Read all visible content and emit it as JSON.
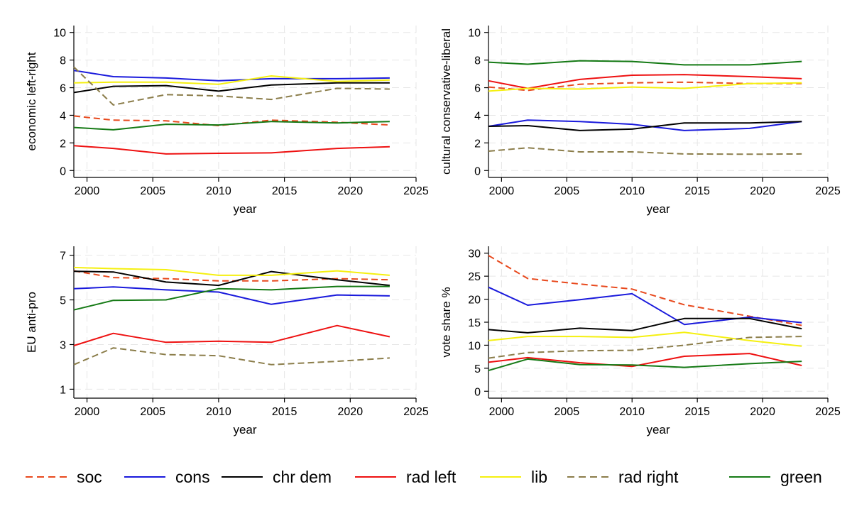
{
  "legend": [
    {
      "key": "soc",
      "label": "soc",
      "color": "#e8491d",
      "dash": true
    },
    {
      "key": "cons",
      "label": "cons",
      "color": "#1a1adc",
      "dash": false
    },
    {
      "key": "chrdem",
      "label": "chr dem",
      "color": "#000000",
      "dash": false
    },
    {
      "key": "radleft",
      "label": "rad left",
      "color": "#ee1111",
      "dash": false
    },
    {
      "key": "lib",
      "label": "lib",
      "color": "#f5f010",
      "dash": false
    },
    {
      "key": "radright",
      "label": "rad right",
      "color": "#8b7d4a",
      "dash": true
    },
    {
      "key": "green",
      "label": "green",
      "color": "#157a15",
      "dash": false
    }
  ],
  "chart_data": [
    {
      "type": "line",
      "title": "",
      "xlabel": "year",
      "ylabel": "economic left-right",
      "xlim": [
        1999,
        2025
      ],
      "ylim": [
        -0.5,
        10.5
      ],
      "xticks": [
        2000,
        2005,
        2010,
        2015,
        2020,
        2025
      ],
      "yticks": [
        0,
        2,
        4,
        6,
        8,
        10
      ],
      "x": [
        1999,
        2002,
        2006,
        2010,
        2014,
        2019,
        2023
      ],
      "series": [
        {
          "key": "soc",
          "name": "soc",
          "values": [
            3.95,
            3.65,
            3.6,
            3.25,
            3.65,
            3.5,
            3.3
          ]
        },
        {
          "key": "cons",
          "name": "cons",
          "values": [
            7.25,
            6.8,
            6.7,
            6.5,
            6.65,
            6.65,
            6.7
          ]
        },
        {
          "key": "chrdem",
          "name": "chr dem",
          "values": [
            5.65,
            6.1,
            6.15,
            5.75,
            6.2,
            6.35,
            6.35
          ]
        },
        {
          "key": "radleft",
          "name": "rad left",
          "values": [
            1.8,
            1.6,
            1.2,
            1.25,
            1.28,
            1.6,
            1.72
          ]
        },
        {
          "key": "lib",
          "name": "lib",
          "values": [
            6.35,
            6.4,
            6.4,
            6.25,
            6.85,
            6.45,
            6.55
          ]
        },
        {
          "key": "radright",
          "name": "rad right",
          "values": [
            7.5,
            4.75,
            5.5,
            5.4,
            5.15,
            5.95,
            5.9
          ]
        },
        {
          "key": "green",
          "name": "green",
          "values": [
            3.12,
            2.95,
            3.35,
            3.3,
            3.55,
            3.45,
            3.55
          ]
        }
      ]
    },
    {
      "type": "line",
      "title": "",
      "xlabel": "year",
      "ylabel": "cultural conservative-liberal",
      "xlim": [
        1999,
        2025
      ],
      "ylim": [
        -0.5,
        10.5
      ],
      "xticks": [
        2000,
        2005,
        2010,
        2015,
        2020,
        2025
      ],
      "yticks": [
        0,
        2,
        4,
        6,
        8,
        10
      ],
      "x": [
        1999,
        2002,
        2006,
        2010,
        2014,
        2019,
        2023
      ],
      "series": [
        {
          "key": "soc",
          "name": "soc",
          "values": [
            6.05,
            5.8,
            6.25,
            6.35,
            6.4,
            6.3,
            6.3
          ]
        },
        {
          "key": "cons",
          "name": "cons",
          "values": [
            3.2,
            3.65,
            3.55,
            3.35,
            2.9,
            3.05,
            3.55
          ]
        },
        {
          "key": "chrdem",
          "name": "chr dem",
          "values": [
            3.2,
            3.25,
            2.9,
            3.0,
            3.45,
            3.45,
            3.55
          ]
        },
        {
          "key": "radleft",
          "name": "rad left",
          "values": [
            6.5,
            5.95,
            6.6,
            6.9,
            6.95,
            6.8,
            6.65
          ]
        },
        {
          "key": "lib",
          "name": "lib",
          "values": [
            5.75,
            5.95,
            5.9,
            6.05,
            5.95,
            6.3,
            6.35
          ]
        },
        {
          "key": "radright",
          "name": "rad right",
          "values": [
            1.4,
            1.65,
            1.35,
            1.35,
            1.2,
            1.18,
            1.2
          ]
        },
        {
          "key": "green",
          "name": "green",
          "values": [
            7.85,
            7.7,
            7.95,
            7.9,
            7.65,
            7.65,
            7.9
          ]
        }
      ]
    },
    {
      "type": "line",
      "title": "",
      "xlabel": "year",
      "ylabel": "EU anti-pro",
      "xlim": [
        1999,
        2025
      ],
      "ylim": [
        0.6,
        7.4
      ],
      "xticks": [
        2000,
        2005,
        2010,
        2015,
        2020,
        2025
      ],
      "yticks": [
        1,
        3,
        5,
        7
      ],
      "x": [
        1999,
        2002,
        2006,
        2010,
        2014,
        2019,
        2023
      ],
      "series": [
        {
          "key": "soc",
          "name": "soc",
          "values": [
            6.3,
            6.0,
            5.95,
            5.85,
            5.85,
            5.95,
            5.9
          ]
        },
        {
          "key": "cons",
          "name": "cons",
          "values": [
            5.5,
            5.58,
            5.45,
            5.35,
            4.8,
            5.22,
            5.18
          ]
        },
        {
          "key": "chrdem",
          "name": "chr dem",
          "values": [
            6.28,
            6.25,
            5.8,
            5.65,
            6.27,
            5.9,
            5.65
          ]
        },
        {
          "key": "radleft",
          "name": "rad left",
          "values": [
            2.95,
            3.5,
            3.1,
            3.15,
            3.1,
            3.85,
            3.35
          ]
        },
        {
          "key": "lib",
          "name": "lib",
          "values": [
            6.45,
            6.4,
            6.35,
            6.1,
            6.1,
            6.3,
            6.1
          ]
        },
        {
          "key": "radright",
          "name": "rad right",
          "values": [
            2.1,
            2.85,
            2.55,
            2.5,
            2.1,
            2.25,
            2.4
          ]
        },
        {
          "key": "green",
          "name": "green",
          "values": [
            4.55,
            4.98,
            5.0,
            5.5,
            5.45,
            5.6,
            5.6
          ]
        }
      ]
    },
    {
      "type": "line",
      "title": "",
      "xlabel": "year",
      "ylabel": "vote share %",
      "xlim": [
        1999,
        2025
      ],
      "ylim": [
        -1.5,
        31.5
      ],
      "xticks": [
        2000,
        2005,
        2010,
        2015,
        2020,
        2025
      ],
      "yticks": [
        0,
        5,
        10,
        15,
        20,
        25,
        30
      ],
      "x": [
        1999,
        2002,
        2006,
        2010,
        2014,
        2019,
        2023
      ],
      "series": [
        {
          "key": "soc",
          "name": "soc",
          "values": [
            29.5,
            24.5,
            23.3,
            22.2,
            18.8,
            16.3,
            14.3
          ]
        },
        {
          "key": "cons",
          "name": "cons",
          "values": [
            22.6,
            18.7,
            19.9,
            21.2,
            14.5,
            16.1,
            14.9
          ]
        },
        {
          "key": "chrdem",
          "name": "chr dem",
          "values": [
            13.4,
            12.7,
            13.7,
            13.2,
            15.8,
            15.8,
            13.6
          ]
        },
        {
          "key": "radleft",
          "name": "rad left",
          "values": [
            6.3,
            7.3,
            6.2,
            5.4,
            7.6,
            8.2,
            5.6
          ]
        },
        {
          "key": "lib",
          "name": "lib",
          "values": [
            11.0,
            11.9,
            11.9,
            11.7,
            12.8,
            11.0,
            9.8
          ]
        },
        {
          "key": "radright",
          "name": "rad right",
          "values": [
            7.2,
            8.4,
            8.8,
            8.9,
            10.0,
            11.7,
            11.9
          ]
        },
        {
          "key": "green",
          "name": "green",
          "values": [
            4.5,
            7.0,
            5.8,
            5.7,
            5.2,
            6.0,
            6.5
          ]
        }
      ]
    }
  ]
}
